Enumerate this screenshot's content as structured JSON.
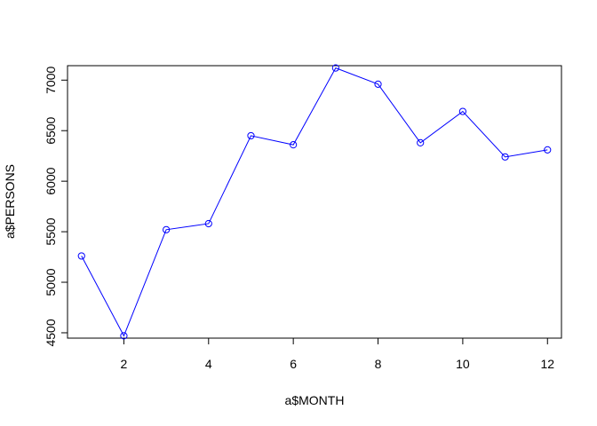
{
  "chart_data": {
    "type": "line",
    "title": "",
    "xlabel": "a$MONTH",
    "ylabel": "a$PERSONS",
    "x": [
      1,
      2,
      3,
      4,
      5,
      6,
      7,
      8,
      9,
      10,
      11,
      12
    ],
    "y": [
      5260,
      4470,
      5520,
      5580,
      6450,
      6360,
      7120,
      6960,
      6380,
      6690,
      6240,
      6310
    ],
    "xlim": [
      0.67,
      12.33
    ],
    "ylim": [
      4447,
      7143
    ],
    "xticks": [
      2,
      4,
      6,
      8,
      10,
      12
    ],
    "yticks": [
      4500,
      5000,
      5500,
      6000,
      6500,
      7000
    ],
    "line_color": "#0000ff",
    "marker": "open-circle",
    "grid": false
  }
}
